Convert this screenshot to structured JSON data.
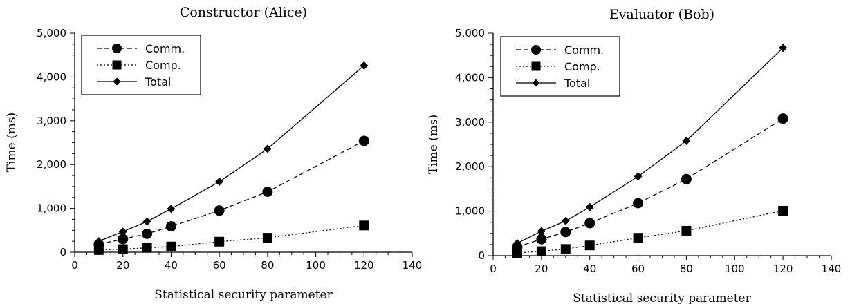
{
  "chart_data": [
    {
      "type": "line",
      "title": "Constructor (Alice)",
      "xlabel": "Statistical security parameter",
      "ylabel": "Time (ms)",
      "xlim": [
        0,
        140
      ],
      "ylim": [
        0,
        5000
      ],
      "x_ticks": [
        0,
        20,
        40,
        60,
        80,
        100,
        120,
        140
      ],
      "y_ticks": [
        0,
        1000,
        2000,
        3000,
        4000,
        5000
      ],
      "x_tick_labels": [
        "0",
        "20",
        "40",
        "60",
        "80",
        "100",
        "120",
        "140"
      ],
      "y_tick_labels": [
        "0",
        "1,000",
        "2,000",
        "3,000",
        "4,000",
        "5,000"
      ],
      "x": [
        10,
        20,
        30,
        40,
        60,
        80,
        120
      ],
      "legend_position": "top-left",
      "series": [
        {
          "name": "Comm.",
          "marker": "circle",
          "dash": "dashed",
          "values": [
            180,
            300,
            420,
            590,
            950,
            1380,
            2540
          ]
        },
        {
          "name": "Comp.",
          "marker": "square",
          "dash": "dotted",
          "values": [
            50,
            70,
            100,
            130,
            240,
            330,
            610
          ]
        },
        {
          "name": "Total",
          "marker": "diamond",
          "dash": "solid",
          "values": [
            250,
            470,
            700,
            990,
            1610,
            2360,
            4260
          ]
        }
      ]
    },
    {
      "type": "line",
      "title": "Evaluator (Bob)",
      "xlabel": "Statistical security parameter",
      "ylabel": "Time (ms)",
      "xlim": [
        0,
        140
      ],
      "ylim": [
        0,
        5000
      ],
      "x_ticks": [
        0,
        20,
        40,
        60,
        80,
        100,
        120,
        140
      ],
      "y_ticks": [
        0,
        1000,
        2000,
        3000,
        4000,
        5000
      ],
      "x_tick_labels": [
        "0",
        "20",
        "40",
        "60",
        "80",
        "100",
        "120",
        "140"
      ],
      "y_tick_labels": [
        "0",
        "1,000",
        "2,000",
        "3,000",
        "4,000",
        "5,000"
      ],
      "x": [
        10,
        20,
        30,
        40,
        60,
        80,
        120
      ],
      "legend_position": "top-left",
      "series": [
        {
          "name": "Comm.",
          "marker": "circle",
          "dash": "dashed",
          "values": [
            200,
            370,
            530,
            730,
            1180,
            1720,
            3080
          ]
        },
        {
          "name": "Comp.",
          "marker": "square",
          "dash": "dotted",
          "values": [
            60,
            100,
            150,
            230,
            400,
            560,
            1010
          ]
        },
        {
          "name": "Total",
          "marker": "diamond",
          "dash": "solid",
          "values": [
            280,
            550,
            780,
            1090,
            1780,
            2580,
            4670
          ]
        }
      ]
    }
  ]
}
